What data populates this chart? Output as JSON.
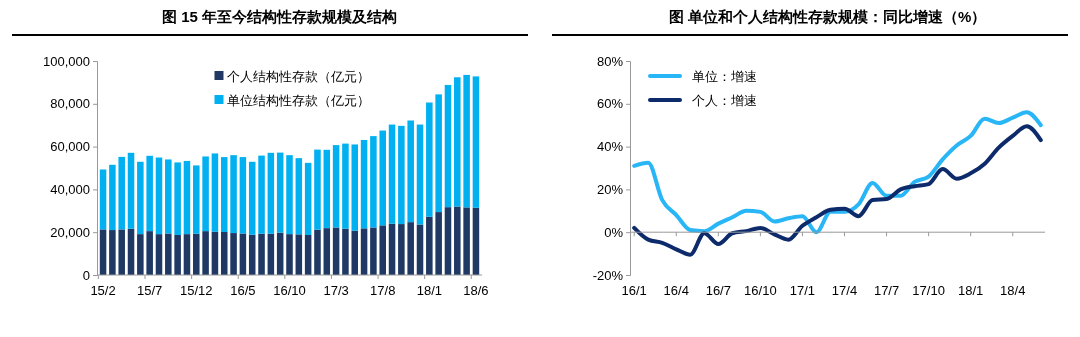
{
  "chart_data": [
    {
      "type": "bar",
      "title": "图  15 年至今结构性存款规模及结构",
      "stacked": true,
      "legend": "top",
      "categories": [
        "15/2",
        null,
        null,
        null,
        null,
        "15/7",
        null,
        null,
        null,
        null,
        "15/12",
        null,
        null,
        null,
        null,
        "16/5",
        null,
        null,
        null,
        null,
        "16/10",
        null,
        null,
        null,
        null,
        "17/3",
        null,
        null,
        null,
        null,
        "17/8",
        null,
        null,
        null,
        null,
        "18/1",
        null,
        null,
        null,
        null,
        "18/6"
      ],
      "series": [
        {
          "name": "个人结构性存款（亿元）",
          "color": "#1f3864",
          "values": [
            21300,
            21000,
            21300,
            21600,
            19100,
            20500,
            19100,
            19400,
            18700,
            19100,
            19300,
            20500,
            20200,
            20100,
            19600,
            19400,
            18800,
            19300,
            19300,
            19800,
            19100,
            19000,
            18700,
            21200,
            21900,
            22200,
            21600,
            20700,
            21800,
            22200,
            23200,
            24000,
            23800,
            24700,
            23600,
            27200,
            29400,
            31700,
            32000,
            31600,
            31400
          ]
        },
        {
          "name": "单位结构性存款（亿元）",
          "color": "#00b0f0",
          "values": [
            28000,
            30500,
            33900,
            35500,
            33800,
            35200,
            35800,
            34600,
            33900,
            34200,
            31900,
            34900,
            36600,
            35000,
            36400,
            35700,
            34100,
            36500,
            37800,
            37400,
            36900,
            35600,
            33700,
            37400,
            36600,
            38500,
            39800,
            40300,
            41300,
            42700,
            44300,
            46300,
            45900,
            47500,
            46700,
            53400,
            55000,
            57100,
            60400,
            61900,
            61400
          ]
        }
      ],
      "ylim": [
        0,
        100000
      ],
      "yticks": [
        0,
        {
          "value": 20000,
          "label": "20,000"
        },
        {
          "value": 40000,
          "label": "40,000"
        },
        {
          "value": 60000,
          "label": "60,000"
        },
        {
          "value": 80000,
          "label": "80,000"
        },
        {
          "value": 100000,
          "label": "100,000"
        }
      ]
    },
    {
      "type": "line",
      "title": "图  单位和个人结构性存款规模：同比增速（%）",
      "legend": "top left",
      "categories": [
        "16/1",
        null,
        null,
        "16/4",
        null,
        null,
        "16/7",
        null,
        null,
        "16/10",
        null,
        null,
        "17/1",
        null,
        null,
        "17/4",
        null,
        null,
        "17/7",
        null,
        null,
        "17/10",
        null,
        null,
        "18/1",
        null,
        null,
        "18/4",
        null,
        null
      ],
      "series": [
        {
          "name": "单位：增速",
          "color": "#29b6f6",
          "values": [
            31,
            32.5,
            15,
            8,
            1,
            0.5,
            4,
            7,
            10,
            9.5,
            5,
            6.5,
            7.5,
            0,
            9.5,
            9.5,
            13,
            23,
            17,
            17,
            23.5,
            26,
            34,
            40.5,
            45,
            53,
            51,
            53.5,
            56,
            50
          ]
        },
        {
          "name": "个人：增速",
          "color": "#0d2a6b",
          "values": [
            2,
            -3.5,
            -5,
            -8,
            -10.5,
            -0.5,
            -5.5,
            -0.5,
            0.5,
            2,
            -1,
            -3.5,
            3,
            7,
            10.5,
            11,
            7.5,
            15,
            15.5,
            20,
            21.5,
            22.5,
            29.5,
            25,
            27.5,
            32,
            39.5,
            45,
            49.5,
            43
          ]
        }
      ],
      "ylim": [
        -20,
        80
      ],
      "yticks": [
        {
          "value": -20,
          "label": "-20%"
        },
        {
          "value": 0,
          "label": "0%"
        },
        {
          "value": 20,
          "label": "20%"
        },
        {
          "value": 40,
          "label": "40%"
        },
        {
          "value": 60,
          "label": "60%"
        },
        {
          "value": 80,
          "label": "80%"
        }
      ]
    }
  ]
}
